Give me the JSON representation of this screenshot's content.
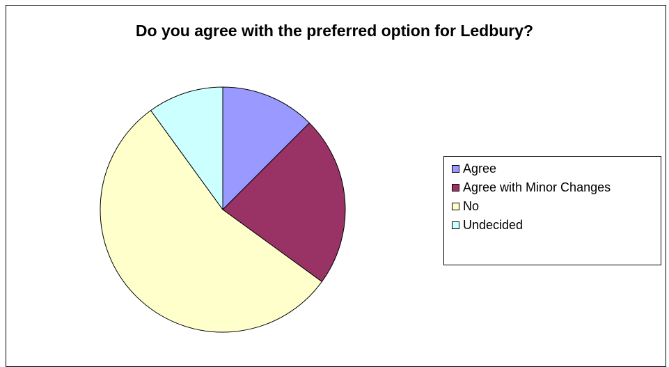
{
  "chart_data": {
    "type": "pie",
    "title": "Do you agree with the preferred option for Ledbury?",
    "categories": [
      "Agree",
      "Agree with Minor Changes",
      "No",
      "Undecided"
    ],
    "values": [
      12.5,
      22.5,
      55,
      10
    ],
    "colors": [
      "#9999ff",
      "#993366",
      "#ffffcc",
      "#ccffff"
    ],
    "start_angle_deg": 0,
    "direction": "clockwise",
    "legend_position": "right"
  }
}
